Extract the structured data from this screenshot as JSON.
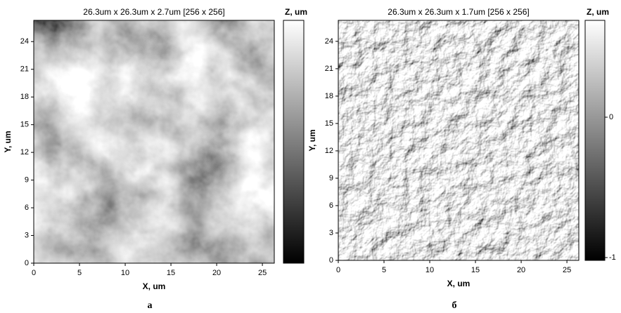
{
  "chart_data": [
    {
      "type": "image",
      "title": "26.3um x 26.3um x 2.7um [256 x 256]",
      "xlabel": "X, um",
      "ylabel": "Y, um",
      "xlim": [
        0,
        26.3
      ],
      "ylim": [
        0,
        26.3
      ],
      "xticks": [
        0,
        5,
        10,
        15,
        20,
        25
      ],
      "yticks": [
        0,
        3,
        6,
        9,
        12,
        15,
        18,
        21,
        24
      ],
      "colorbar": {
        "label": "Z, um"
      },
      "caption": "а"
    },
    {
      "type": "image",
      "title": "26.3um x 26.3um x 1.7um [256 x 256]",
      "xlabel": "X, um",
      "ylabel": "Y, um",
      "xlim": [
        0,
        26.3
      ],
      "ylim": [
        0,
        26.3
      ],
      "xticks": [
        0,
        5,
        10,
        15,
        20,
        25
      ],
      "yticks": [
        0,
        3,
        6,
        9,
        12,
        15,
        18,
        21,
        24
      ],
      "colorbar": {
        "label": "Z, um",
        "zlim": [
          -1.02,
          0.69
        ],
        "zticks": [
          0,
          -1
        ]
      },
      "caption": "б"
    }
  ]
}
